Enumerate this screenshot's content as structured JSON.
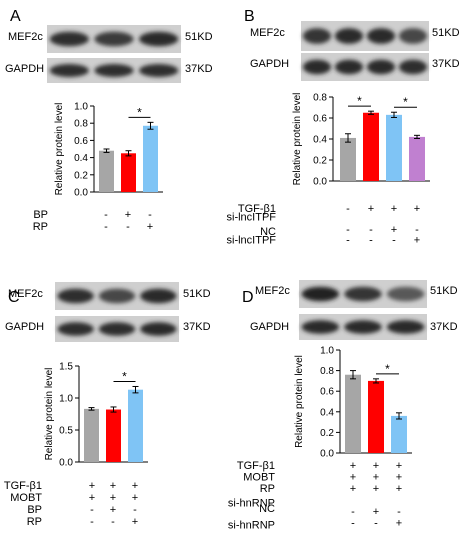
{
  "panels": [
    {
      "letter": "A",
      "blots": [
        {
          "name": "MEF2c",
          "size": "51KD"
        },
        {
          "name": "GAPDH",
          "size": "37KD"
        }
      ],
      "chart_data": {
        "type": "bar",
        "ylabel": "Relative protein level",
        "ylim": [
          0,
          1.0
        ],
        "yticks": [
          "0.0",
          "0.2",
          "0.4",
          "0.6",
          "0.8",
          "1.0"
        ],
        "values": [
          0.48,
          0.45,
          0.77
        ],
        "errors": [
          0.02,
          0.03,
          0.04
        ],
        "colors": [
          "#a6a6a6",
          "#ff0000",
          "#7fc4f5"
        ],
        "significance": [
          {
            "from": 1,
            "to": 2,
            "label": "*"
          }
        ],
        "conditions": [
          {
            "label": "BP",
            "marks": [
              "-",
              "+",
              "-"
            ]
          },
          {
            "label": "RP",
            "marks": [
              "-",
              "-",
              "+"
            ]
          }
        ]
      }
    },
    {
      "letter": "B",
      "blots": [
        {
          "name": "MEF2c",
          "size": "51KD"
        },
        {
          "name": "GAPDH",
          "size": "37KD"
        }
      ],
      "chart_data": {
        "type": "bar",
        "ylabel": "Relative protein level",
        "ylim": [
          0,
          0.8
        ],
        "yticks": [
          "0.0",
          "0.2",
          "0.4",
          "0.6",
          "0.8"
        ],
        "values": [
          0.41,
          0.65,
          0.63,
          0.42
        ],
        "errors": [
          0.04,
          0.015,
          0.025,
          0.015
        ],
        "colors": [
          "#a6a6a6",
          "#ff0000",
          "#7fc4f5",
          "#c080d0"
        ],
        "significance": [
          {
            "from": 0,
            "to": 1,
            "label": "*"
          },
          {
            "from": 2,
            "to": 3,
            "label": "*"
          }
        ],
        "conditions": [
          {
            "label": "TGF-β1",
            "marks": [
              "-",
              "+",
              "+",
              "+"
            ]
          },
          {
            "label": "si-lncITPF",
            "marks": [
              "",
              "",
              "",
              ""
            ]
          },
          {
            "label": "NC",
            "marks": [
              "-",
              "-",
              "+",
              "-"
            ]
          },
          {
            "label": "si-lncITPF",
            "marks": [
              "-",
              "-",
              "-",
              "+"
            ]
          }
        ]
      }
    },
    {
      "letter": "C",
      "blots": [
        {
          "name": "MEF2c",
          "size": "51KD"
        },
        {
          "name": "GAPDH",
          "size": "37KD"
        }
      ],
      "chart_data": {
        "type": "bar",
        "ylabel": "Relative protein level",
        "ylim": [
          0,
          1.5
        ],
        "yticks": [
          "0.0",
          "0.5",
          "1.0",
          "1.5"
        ],
        "values": [
          0.83,
          0.82,
          1.13
        ],
        "errors": [
          0.02,
          0.04,
          0.05
        ],
        "colors": [
          "#a6a6a6",
          "#ff0000",
          "#7fc4f5"
        ],
        "significance": [
          {
            "from": 1,
            "to": 2,
            "label": "*"
          }
        ],
        "conditions": [
          {
            "label": "TGF-β1",
            "marks": [
              "+",
              "+",
              "+"
            ]
          },
          {
            "label": "MOBT",
            "marks": [
              "+",
              "+",
              "+"
            ]
          },
          {
            "label": "BP",
            "marks": [
              "-",
              "+",
              "-"
            ]
          },
          {
            "label": "RP",
            "marks": [
              "-",
              "-",
              "+"
            ]
          }
        ]
      }
    },
    {
      "letter": "D",
      "blots": [
        {
          "name": "MEF2c",
          "size": "51KD"
        },
        {
          "name": "GAPDH",
          "size": "37KD"
        }
      ],
      "chart_data": {
        "type": "bar",
        "ylabel": "Relative protein level",
        "ylim": [
          0,
          1.0
        ],
        "yticks": [
          "0.0",
          "0.2",
          "0.4",
          "0.6",
          "0.8",
          "1.0"
        ],
        "values": [
          0.76,
          0.7,
          0.36
        ],
        "errors": [
          0.04,
          0.02,
          0.03
        ],
        "colors": [
          "#a6a6a6",
          "#ff0000",
          "#7fc4f5"
        ],
        "significance": [
          {
            "from": 1,
            "to": 2,
            "label": "*"
          }
        ],
        "conditions": [
          {
            "label": "TGF-β1",
            "marks": [
              "+",
              "+",
              "+"
            ]
          },
          {
            "label": "MOBT",
            "marks": [
              "+",
              "+",
              "+"
            ]
          },
          {
            "label": "RP",
            "marks": [
              "+",
              "+",
              "+"
            ]
          },
          {
            "label": "si-hnRNP",
            "marks": [
              "",
              "",
              ""
            ]
          },
          {
            "label": "NC",
            "marks": [
              "-",
              "+",
              "-"
            ]
          },
          {
            "label": "si-hnRNP",
            "marks": [
              "-",
              "-",
              "+"
            ]
          }
        ]
      }
    }
  ]
}
